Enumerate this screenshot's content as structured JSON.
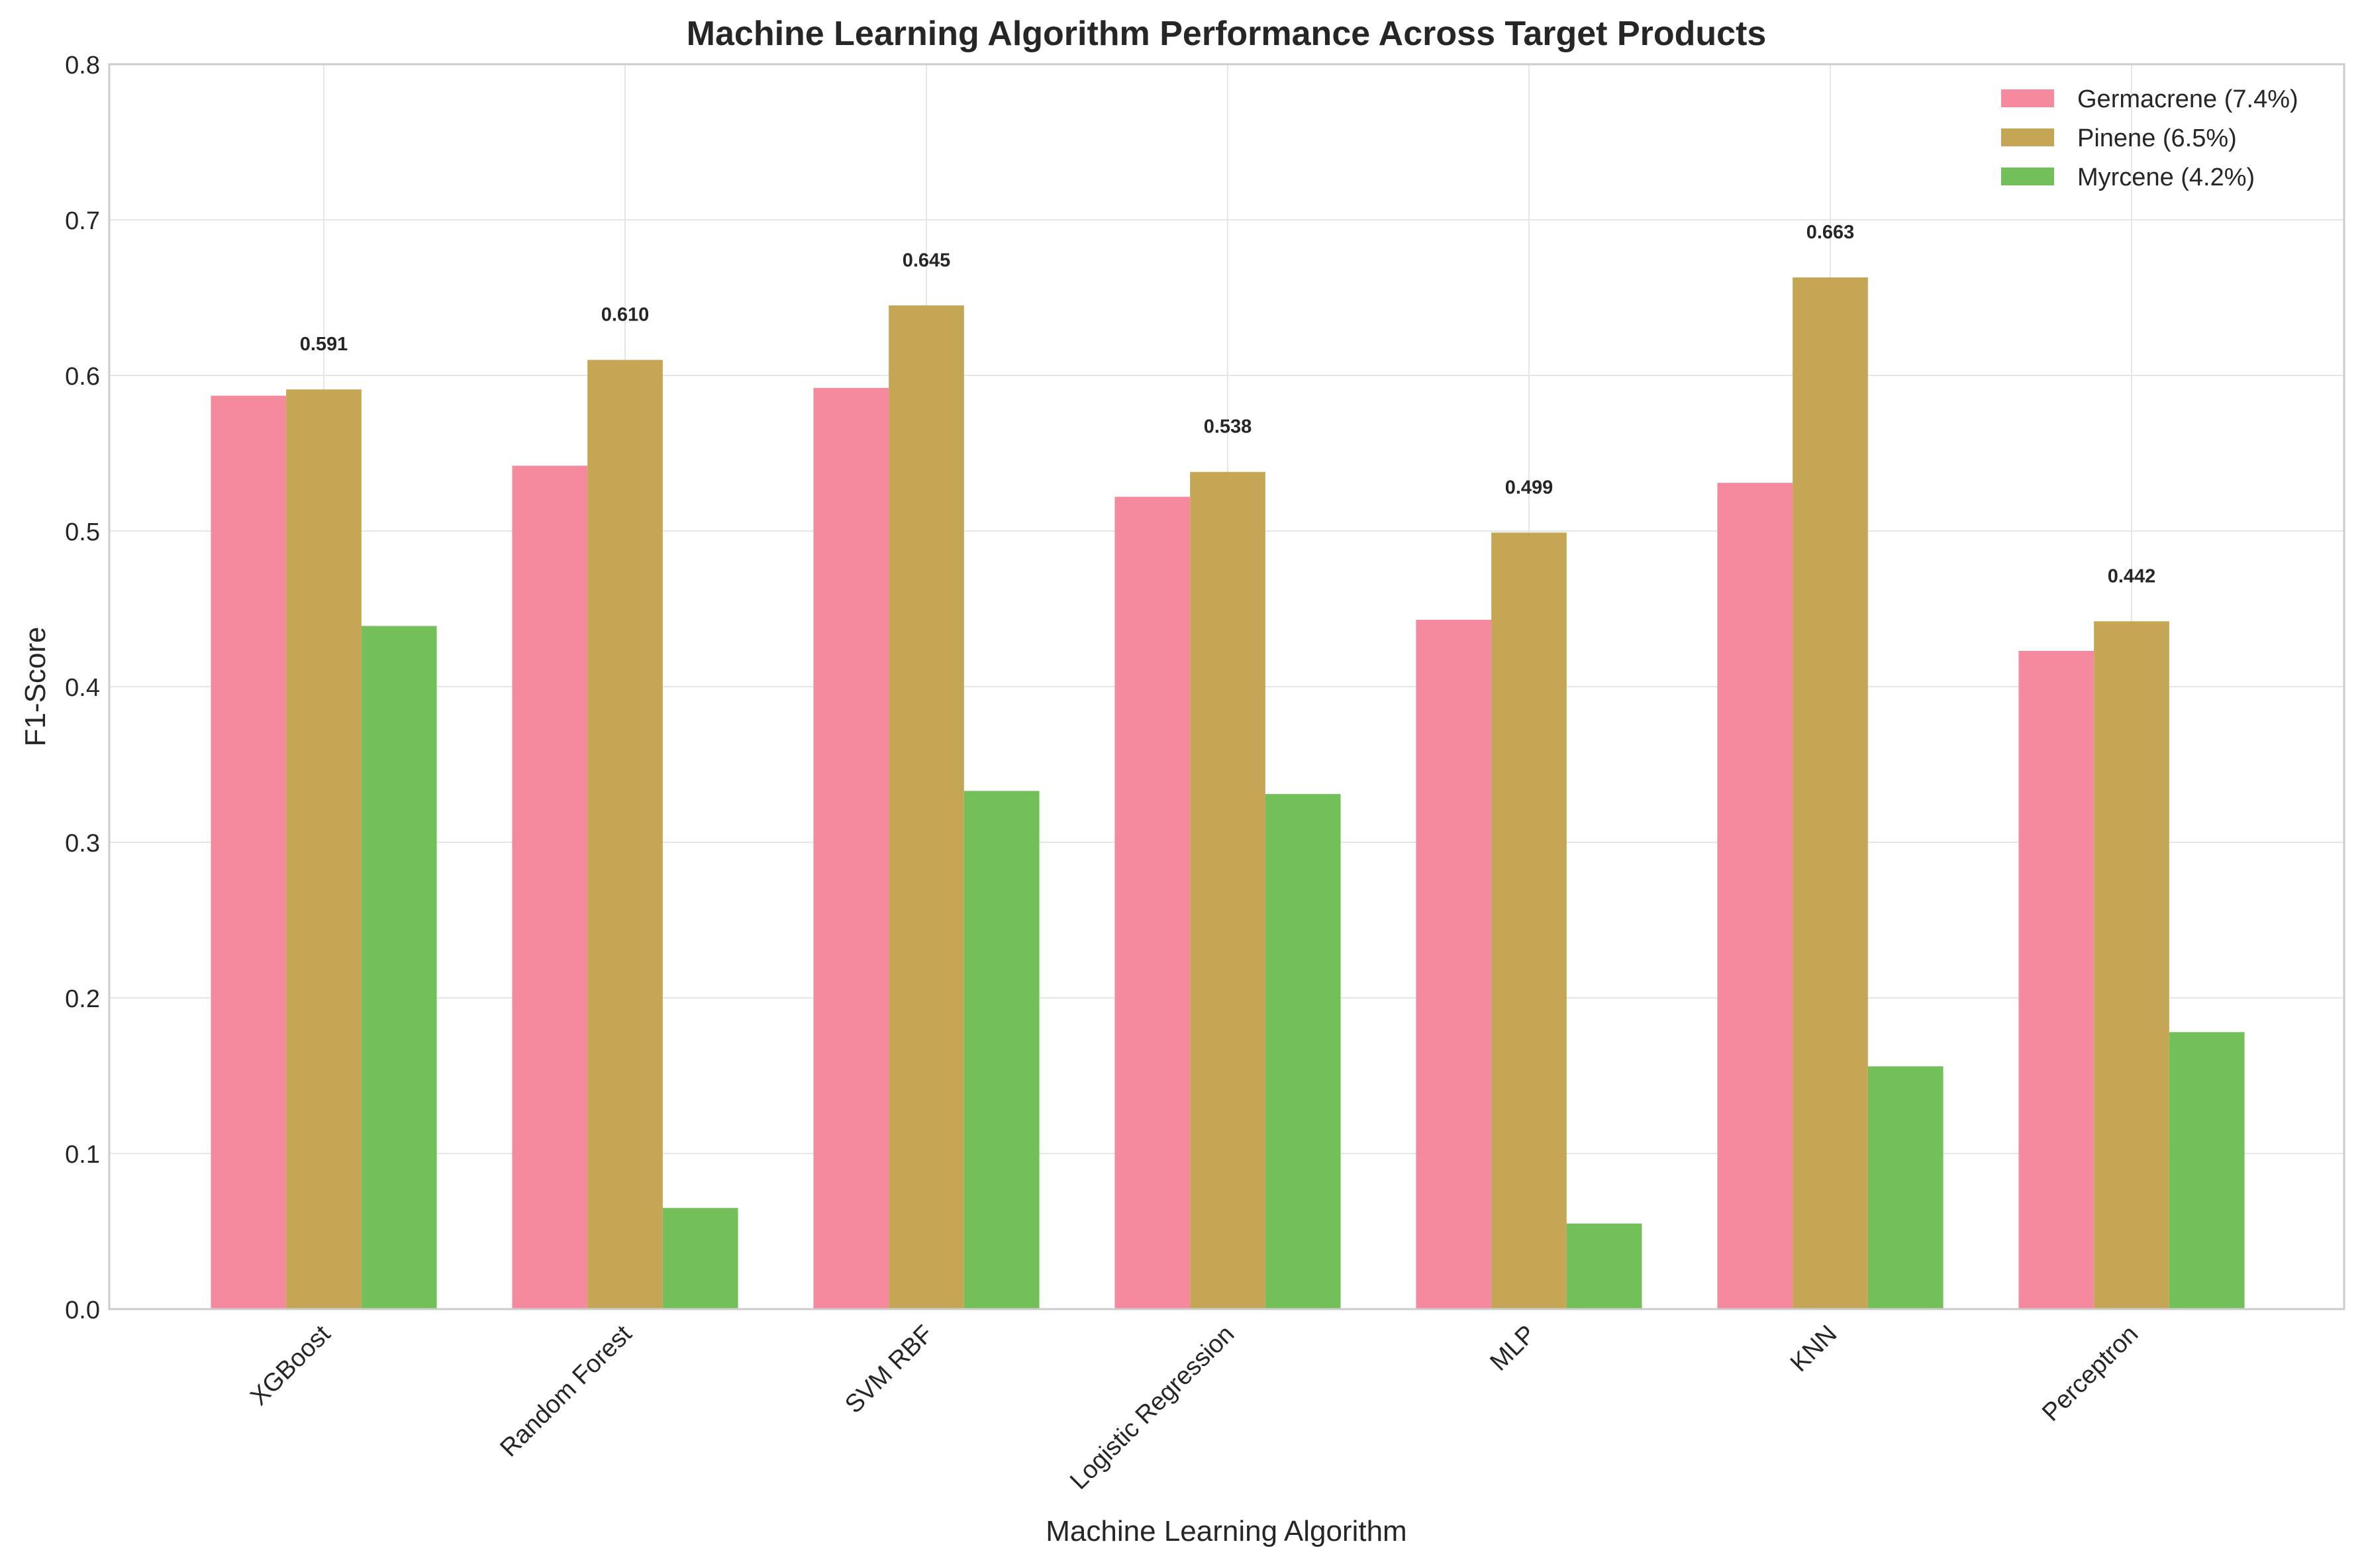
{
  "chart_data": {
    "type": "bar",
    "title": "Machine Learning Algorithm Performance Across Target Products",
    "xlabel": "Machine Learning Algorithm",
    "ylabel": "F1-Score",
    "ylim": [
      0,
      0.8
    ],
    "yticks": [
      "0.0",
      "0.1",
      "0.2",
      "0.3",
      "0.4",
      "0.5",
      "0.6",
      "0.7",
      "0.8"
    ],
    "grid": true,
    "legend_position": "top-right",
    "categories": [
      "XGBoost",
      "Random Forest",
      "SVM RBF",
      "Logistic Regression",
      "MLP",
      "KNN",
      "Perceptron"
    ],
    "series": [
      {
        "name": "Germacrene (7.4%)",
        "color": "#f58a9e",
        "values": [
          0.587,
          0.542,
          0.592,
          0.522,
          0.443,
          0.531,
          0.423
        ]
      },
      {
        "name": "Pinene (6.5%)",
        "color": "#c4a654",
        "values": [
          0.591,
          0.61,
          0.645,
          0.538,
          0.499,
          0.663,
          0.442
        ]
      },
      {
        "name": "Myrcene (4.2%)",
        "color": "#73bf5a",
        "values": [
          0.439,
          0.065,
          0.333,
          0.331,
          0.055,
          0.156,
          0.178
        ]
      }
    ],
    "data_labels": [
      "0.591",
      "0.610",
      "0.645",
      "0.538",
      "0.499",
      "0.663",
      "0.442"
    ],
    "data_label_series": 1
  }
}
